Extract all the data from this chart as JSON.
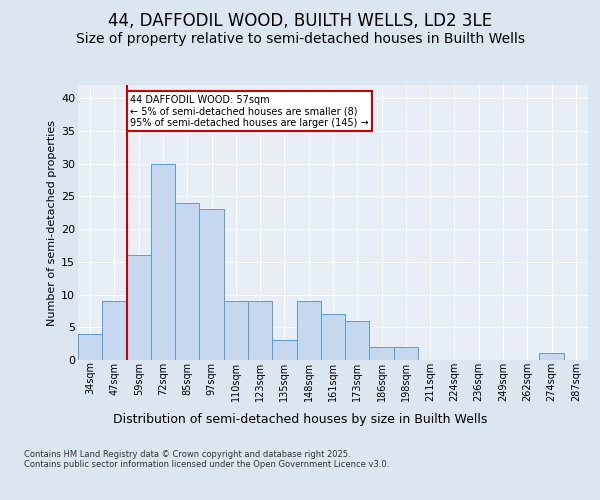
{
  "title": "44, DAFFODIL WOOD, BUILTH WELLS, LD2 3LE",
  "subtitle": "Size of property relative to semi-detached houses in Builth Wells",
  "xlabel": "Distribution of semi-detached houses by size in Builth Wells",
  "ylabel": "Number of semi-detached properties",
  "categories": [
    "34sqm",
    "47sqm",
    "59sqm",
    "72sqm",
    "85sqm",
    "97sqm",
    "110sqm",
    "123sqm",
    "135sqm",
    "148sqm",
    "161sqm",
    "173sqm",
    "186sqm",
    "198sqm",
    "211sqm",
    "224sqm",
    "236sqm",
    "249sqm",
    "262sqm",
    "274sqm",
    "287sqm"
  ],
  "values": [
    4,
    9,
    16,
    30,
    24,
    23,
    9,
    9,
    3,
    9,
    7,
    6,
    2,
    2,
    0,
    0,
    0,
    0,
    0,
    1,
    0
  ],
  "bar_color": "#c5d8ed",
  "bar_edge_color": "#5b9bd5",
  "annotation_text": "44 DAFFODIL WOOD: 57sqm\n← 5% of semi-detached houses are smaller (8)\n95% of semi-detached houses are larger (145) →",
  "annotation_box_color": "#ffffff",
  "annotation_box_edge_color": "#cc0000",
  "vline_color": "#cc0000",
  "vline_x": 1.5,
  "ylim": [
    0,
    42
  ],
  "yticks": [
    0,
    5,
    10,
    15,
    20,
    25,
    30,
    35,
    40
  ],
  "bg_color": "#dce6f0",
  "plot_bg_color": "#e8eef6",
  "grid_color": "#ffffff",
  "footer": "Contains HM Land Registry data © Crown copyright and database right 2025.\nContains public sector information licensed under the Open Government Licence v3.0.",
  "title_fontsize": 12,
  "subtitle_fontsize": 10,
  "ylabel_fontsize": 8,
  "xlabel_fontsize": 9,
  "footer_fontsize": 6,
  "tick_fontsize": 7,
  "ytick_fontsize": 8
}
